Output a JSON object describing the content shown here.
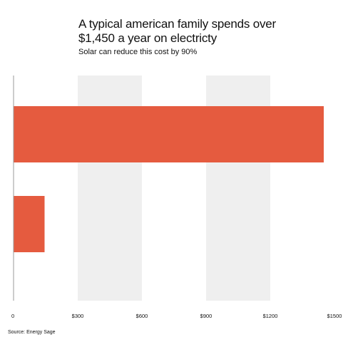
{
  "header": {
    "title_line1": "A typical american family spends over",
    "title_line2": "$1,450 a year on electricty",
    "subtitle": "Solar can reduce this cost by 90%"
  },
  "source": "Source: Energy Sage",
  "colors": {
    "bar": "#E55B3F",
    "band": "#EFEFEF",
    "axis": "#9A9A9A"
  },
  "chart_data": {
    "type": "bar",
    "orientation": "horizontal",
    "title": "A typical american family spends over $1,450 a year on electricty",
    "subtitle": "Solar can reduce this cost by 90%",
    "categories": [
      "",
      ""
    ],
    "values": [
      1450,
      145
    ],
    "xlim": [
      0,
      1500
    ],
    "x_ticks": [
      0,
      300,
      600,
      900,
      1200,
      1500
    ],
    "x_tick_labels": [
      "0",
      "$300",
      "$600",
      "$900",
      "$1200",
      "$1500"
    ],
    "grid": "alternating vertical bands",
    "legend": "none"
  }
}
